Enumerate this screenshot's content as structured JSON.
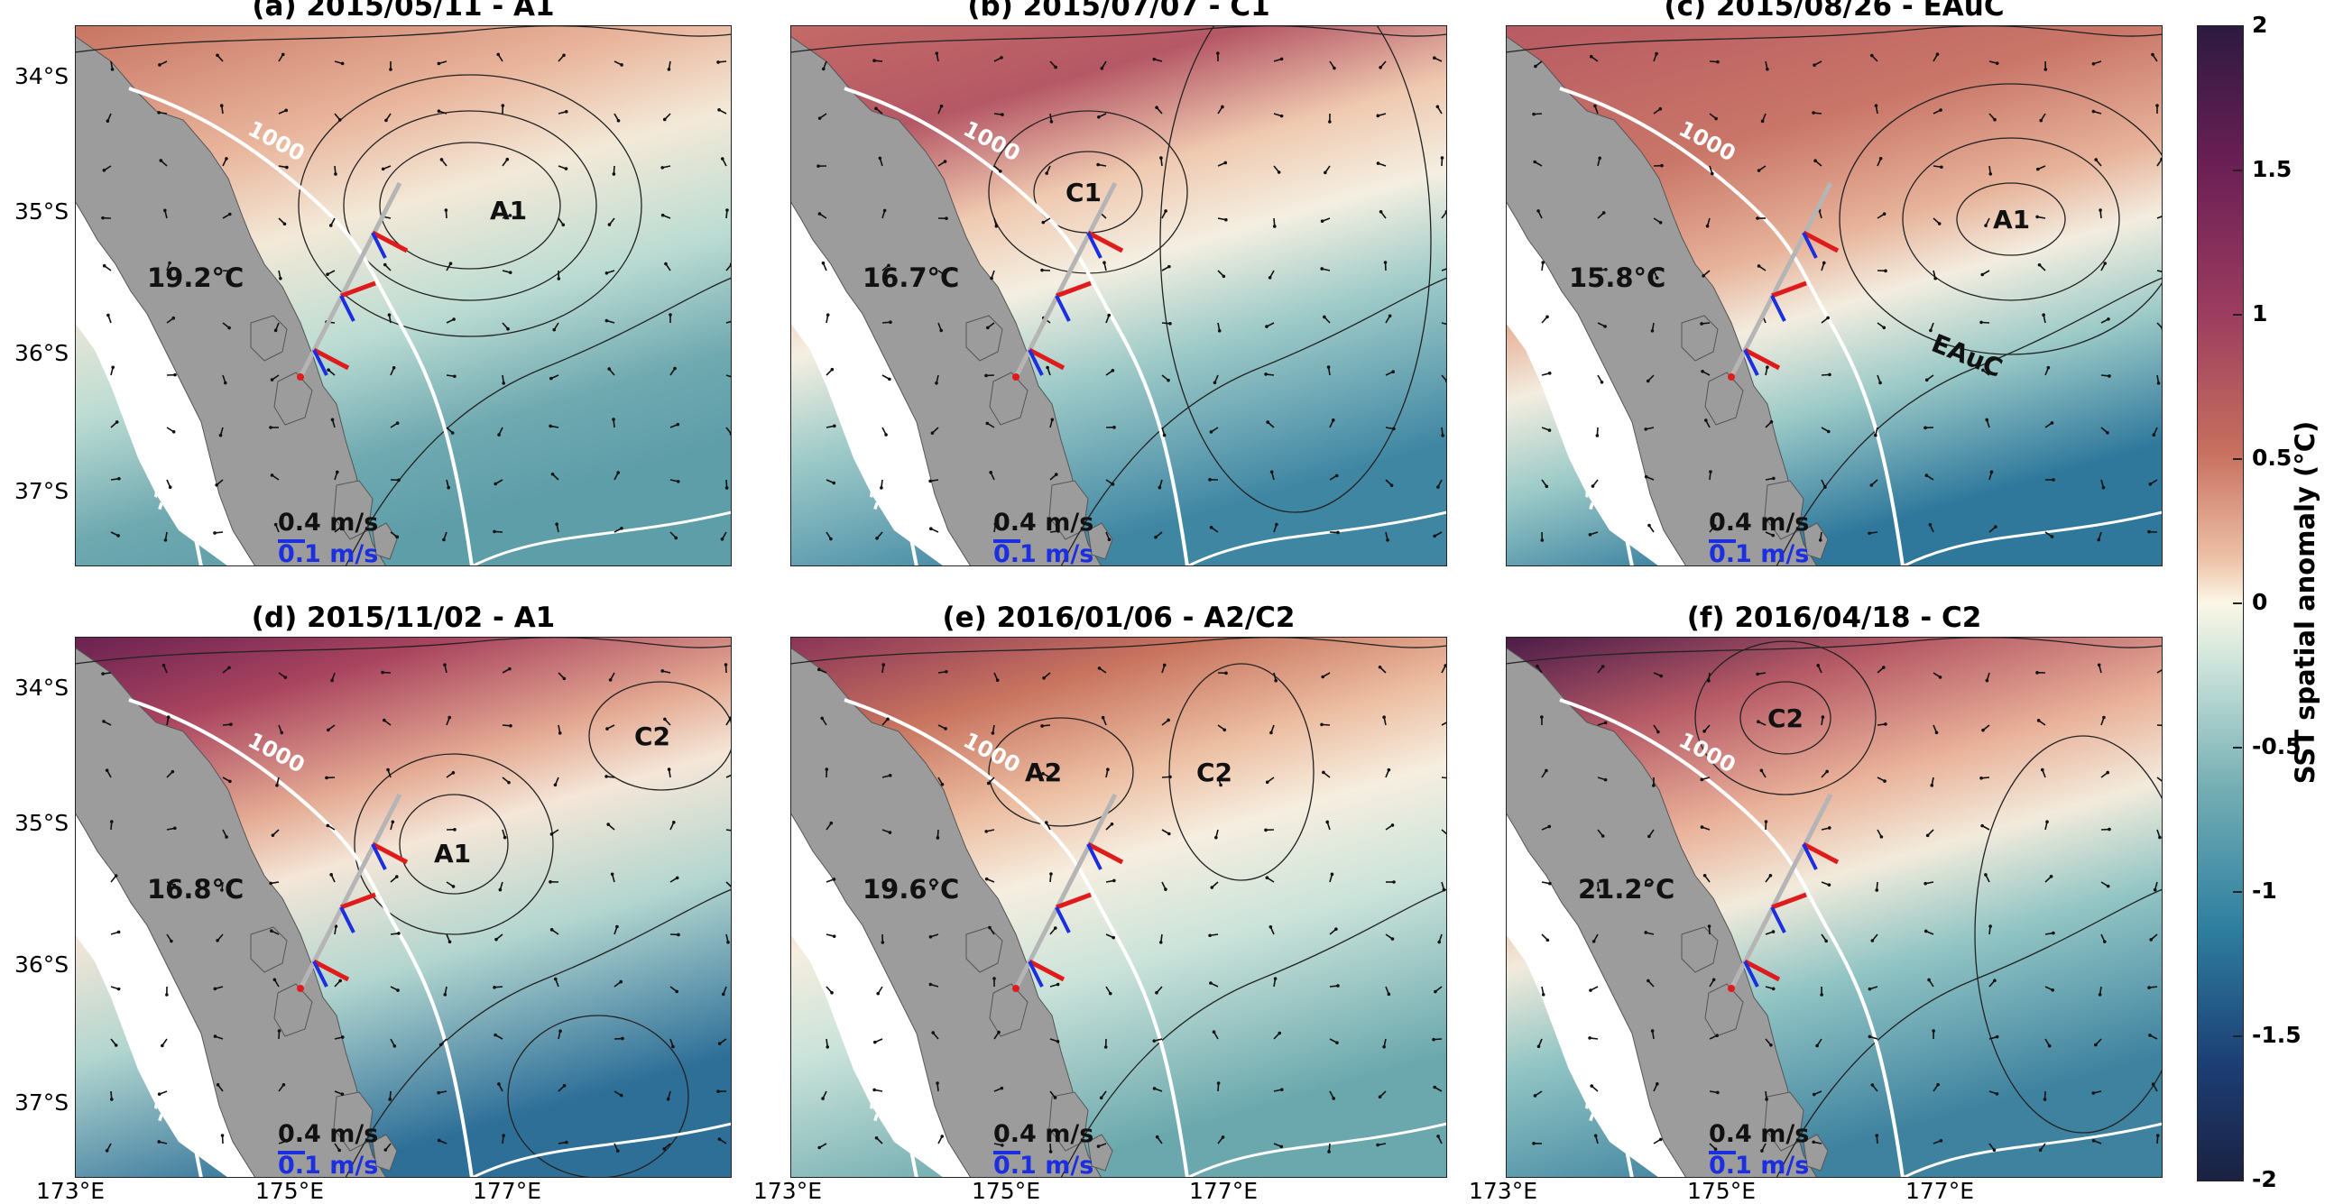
{
  "panels": [
    {
      "title": "(a) 2015/05/11 - A1",
      "temperature": "19.2°C",
      "labels": [
        "A1"
      ],
      "scale_major": "0.4 m/s",
      "scale_minor": "0.1 m/s",
      "isobath": "-1000",
      "isobath_north": "1000"
    },
    {
      "title": "(b) 2015/07/07 - C1",
      "temperature": "16.7°C",
      "labels": [
        "C1"
      ],
      "scale_major": "0.4 m/s",
      "scale_minor": "0.1 m/s",
      "isobath": "-1000",
      "isobath_north": "1000"
    },
    {
      "title": "(c) 2015/08/26 - EAuC",
      "temperature": "15.8°C",
      "labels": [
        "A1",
        "EAuC"
      ],
      "scale_major": "0.4 m/s",
      "scale_minor": "0.1 m/s",
      "isobath": "-1000",
      "isobath_north": "1000"
    },
    {
      "title": "(d) 2015/11/02 - A1",
      "temperature": "16.8°C",
      "labels": [
        "A1",
        "C2"
      ],
      "scale_major": "0.4 m/s",
      "scale_minor": "0.1 m/s",
      "isobath": "-1000",
      "isobath_north": "1000"
    },
    {
      "title": "(e) 2016/01/06 - A2/C2",
      "temperature": "19.6°C",
      "labels": [
        "A2",
        "C2"
      ],
      "scale_major": "0.4 m/s",
      "scale_minor": "0.1 m/s",
      "isobath": "-1000",
      "isobath_north": "1000"
    },
    {
      "title": "(f) 2016/04/18 - C2",
      "temperature": "21.2°C",
      "labels": [
        "C2"
      ],
      "scale_major": "0.4 m/s",
      "scale_minor": "0.1 m/s",
      "isobath": "-1000",
      "isobath_north": "1000"
    }
  ],
  "axes": {
    "lat_ticks": [
      "34°S",
      "35°S",
      "36°S",
      "37°S"
    ],
    "lon_ticks": [
      "173°E",
      "175°E",
      "177°E"
    ]
  },
  "colorbar": {
    "label": "SST spatial anomaly (°C)",
    "ticks": [
      "2",
      "1.5",
      "1",
      "0.5",
      "0",
      "-0.5",
      "-1",
      "-1.5",
      "-2"
    ],
    "range": [
      -2,
      2
    ]
  }
}
